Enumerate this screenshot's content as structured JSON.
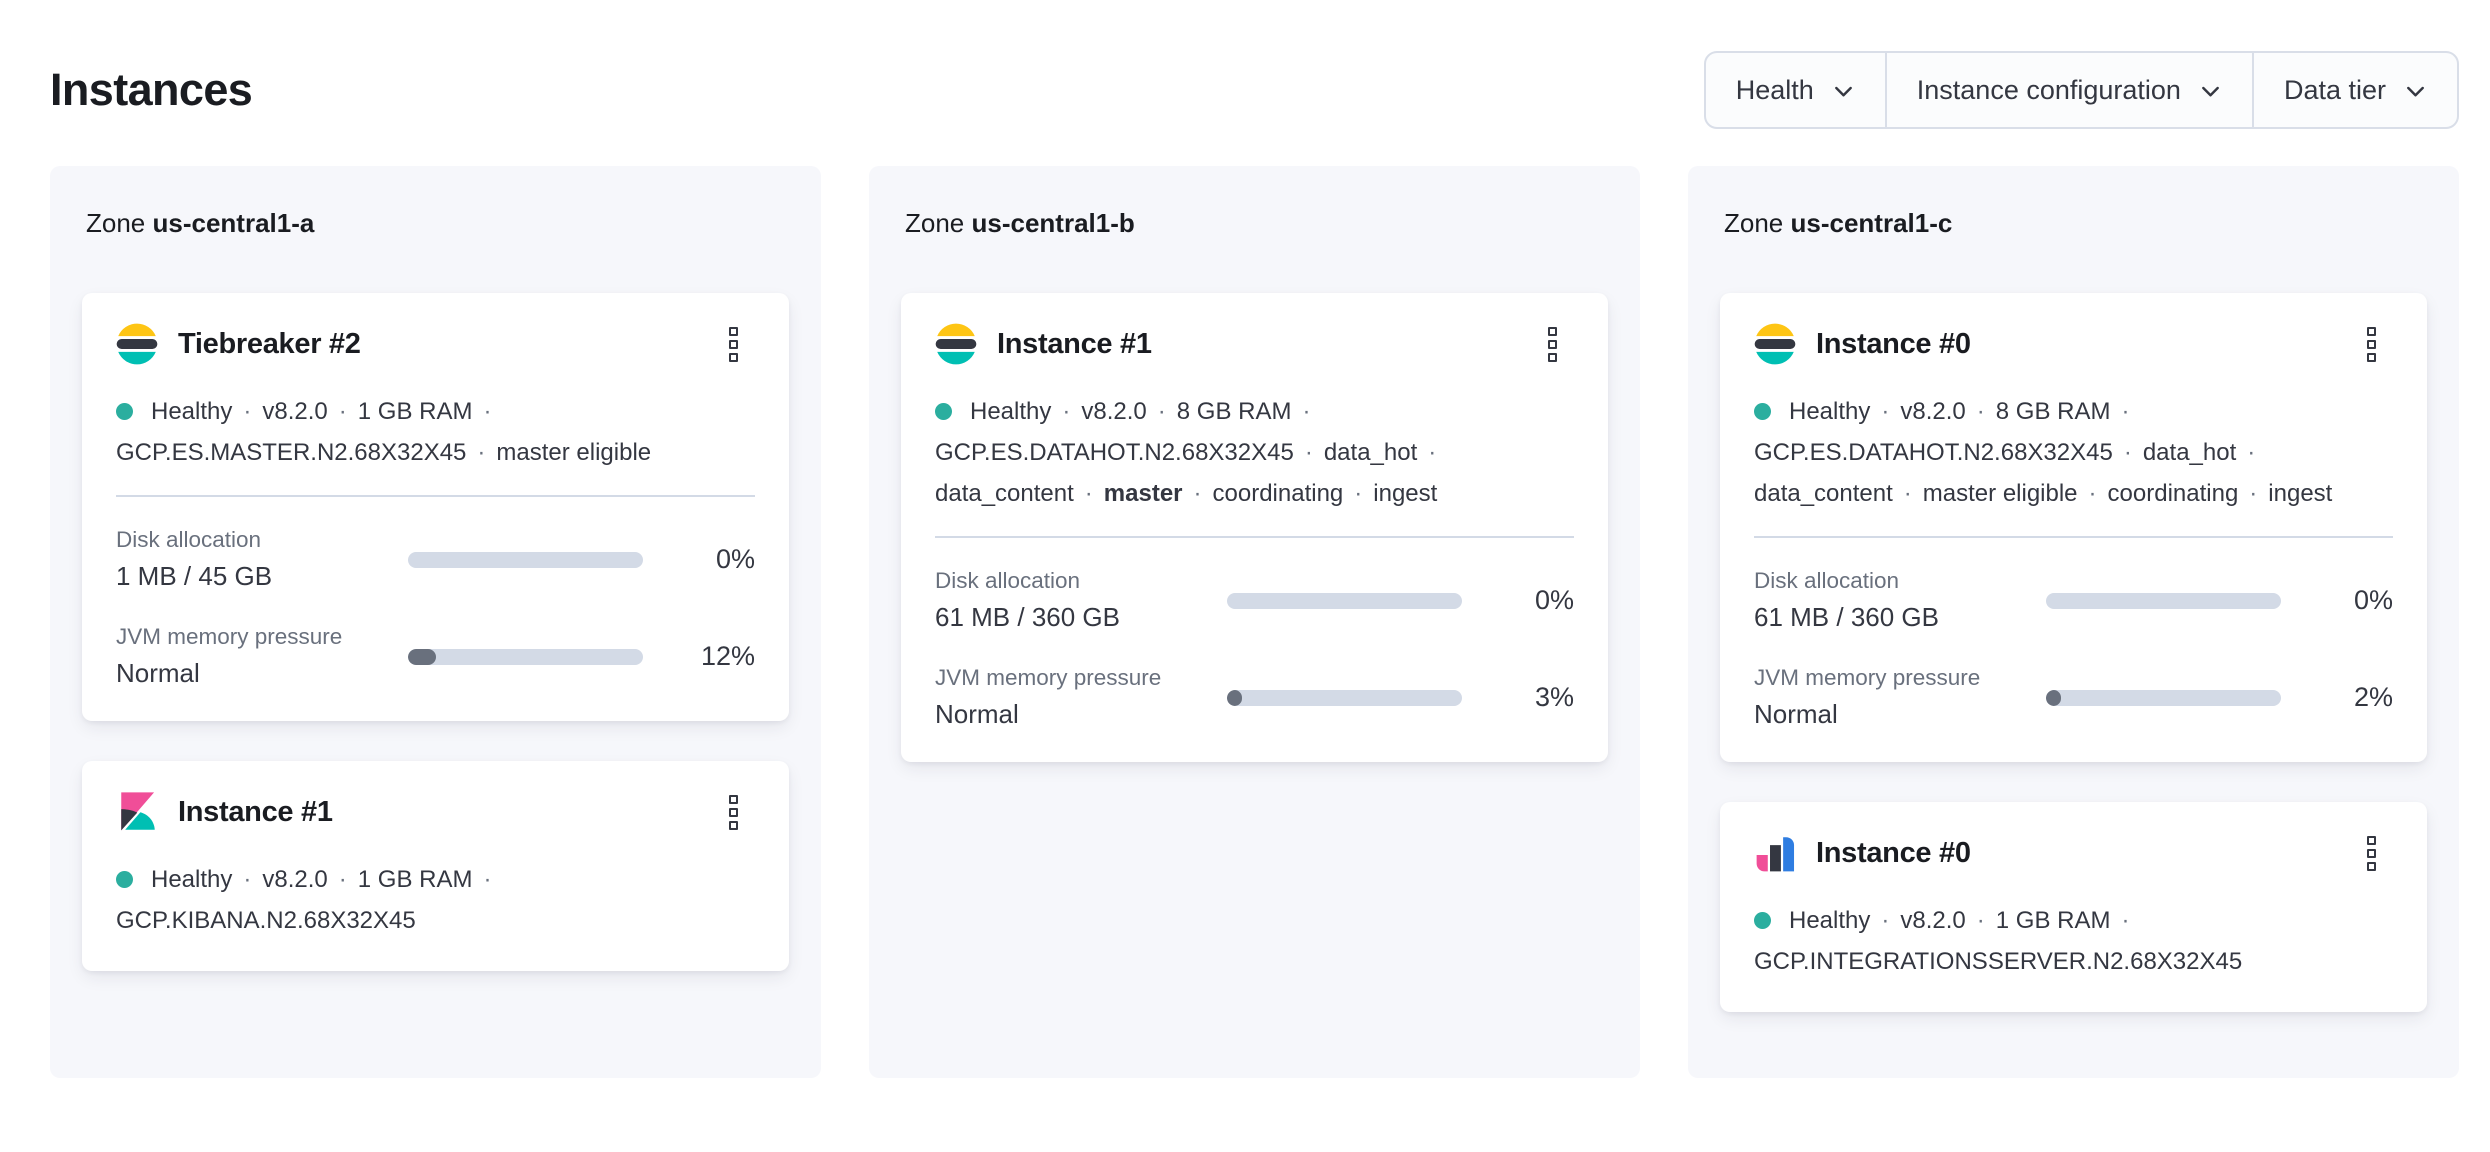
{
  "page": {
    "title": "Instances"
  },
  "filters": [
    {
      "label": "Health"
    },
    {
      "label": "Instance configuration"
    },
    {
      "label": "Data tier"
    }
  ],
  "colors": {
    "health_dot": "#2BAE9F",
    "bar_track": "#D3DAE6",
    "bar_fill": "#69707D",
    "panel_bg": "#F6F7FB",
    "logo_yellow": "#FEC514",
    "logo_dark": "#343741",
    "logo_teal": "#00BFB3",
    "logo_pink": "#F04E98",
    "logo_blue": "#2F7DE1"
  },
  "zones": [
    {
      "zone_label": "Zone",
      "name": "us-central1-a",
      "cards": [
        {
          "logo": "elasticsearch",
          "title": "Tiebreaker #2",
          "meta_lines": [
            {
              "health_dot": true,
              "trailing_sep": true,
              "tokens": [
                {
                  "t": "Healthy"
                },
                {
                  "t": "v8.2.0"
                },
                {
                  "t": "1 GB RAM"
                }
              ]
            },
            {
              "tokens": [
                {
                  "t": "GCP.ES.MASTER.N2.68X32X45"
                },
                {
                  "t": "master eligible"
                }
              ]
            }
          ],
          "metrics": [
            {
              "label": "Disk allocation",
              "value": "1 MB / 45 GB",
              "percent": "0%",
              "fill_pct": 0
            },
            {
              "label": "JVM memory pressure",
              "value": "Normal",
              "percent": "12%",
              "fill_pct": 12
            }
          ]
        },
        {
          "logo": "kibana",
          "title": "Instance #1",
          "meta_lines": [
            {
              "health_dot": true,
              "trailing_sep": true,
              "tokens": [
                {
                  "t": "Healthy"
                },
                {
                  "t": "v8.2.0"
                },
                {
                  "t": "1 GB RAM"
                }
              ]
            },
            {
              "tokens": [
                {
                  "t": "GCP.KIBANA.N2.68X32X45"
                }
              ]
            }
          ],
          "metrics": []
        }
      ]
    },
    {
      "zone_label": "Zone",
      "name": "us-central1-b",
      "cards": [
        {
          "logo": "elasticsearch",
          "title": "Instance #1",
          "meta_lines": [
            {
              "health_dot": true,
              "trailing_sep": true,
              "tokens": [
                {
                  "t": "Healthy"
                },
                {
                  "t": "v8.2.0"
                },
                {
                  "t": "8 GB RAM"
                }
              ]
            },
            {
              "trailing_sep": true,
              "tokens": [
                {
                  "t": "GCP.ES.DATAHOT.N2.68X32X45"
                },
                {
                  "t": "data_hot"
                }
              ]
            },
            {
              "tokens": [
                {
                  "t": "data_content"
                },
                {
                  "t": "master",
                  "bold": true
                },
                {
                  "t": "coordinating"
                },
                {
                  "t": "ingest"
                }
              ]
            }
          ],
          "metrics": [
            {
              "label": "Disk allocation",
              "value": "61 MB / 360 GB",
              "percent": "0%",
              "fill_pct": 0
            },
            {
              "label": "JVM memory pressure",
              "value": "Normal",
              "percent": "3%",
              "fill_pct": 3
            }
          ]
        }
      ]
    },
    {
      "zone_label": "Zone",
      "name": "us-central1-c",
      "cards": [
        {
          "logo": "elasticsearch",
          "title": "Instance #0",
          "meta_lines": [
            {
              "health_dot": true,
              "trailing_sep": true,
              "tokens": [
                {
                  "t": "Healthy"
                },
                {
                  "t": "v8.2.0"
                },
                {
                  "t": "8 GB RAM"
                }
              ]
            },
            {
              "trailing_sep": true,
              "tokens": [
                {
                  "t": "GCP.ES.DATAHOT.N2.68X32X45"
                },
                {
                  "t": "data_hot"
                }
              ]
            },
            {
              "tokens": [
                {
                  "t": "data_content"
                },
                {
                  "t": "master eligible"
                },
                {
                  "t": "coordinating"
                },
                {
                  "t": "ingest"
                }
              ]
            }
          ],
          "metrics": [
            {
              "label": "Disk allocation",
              "value": "61 MB / 360 GB",
              "percent": "0%",
              "fill_pct": 0
            },
            {
              "label": "JVM memory pressure",
              "value": "Normal",
              "percent": "2%",
              "fill_pct": 2
            }
          ]
        },
        {
          "logo": "integrations",
          "title": "Instance #0",
          "meta_lines": [
            {
              "health_dot": true,
              "trailing_sep": true,
              "tokens": [
                {
                  "t": "Healthy"
                },
                {
                  "t": "v8.2.0"
                },
                {
                  "t": "1 GB RAM"
                }
              ]
            },
            {
              "tokens": [
                {
                  "t": "GCP.INTEGRATIONSSERVER.N2.68X32X45"
                }
              ]
            }
          ],
          "metrics": []
        }
      ]
    }
  ]
}
